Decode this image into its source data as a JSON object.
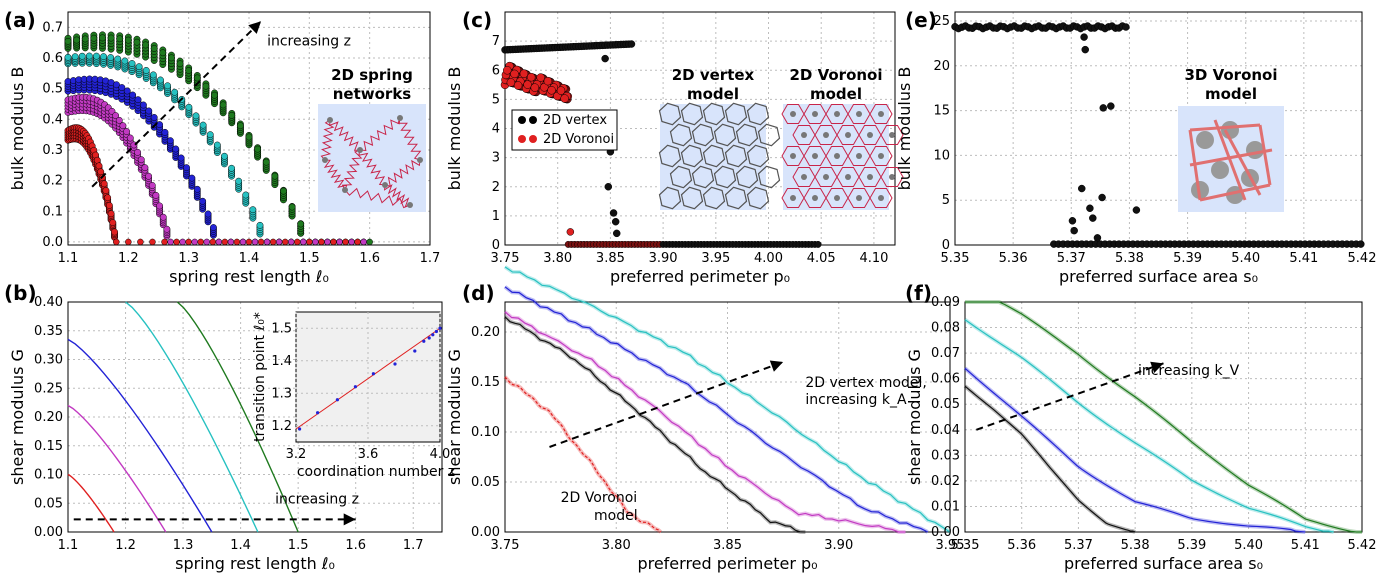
{
  "figure": {
    "panel_tags": [
      "(a)",
      "(b)",
      "(c)",
      "(d)",
      "(e)",
      "(f)"
    ]
  },
  "colors": {
    "green": "#1f7a1f",
    "cyan": "#27c1c1",
    "blue": "#2323d6",
    "magenta": "#c23ac2",
    "red": "#e02020",
    "black": "#111111",
    "gray": "#888888",
    "inset_bg": "#d8e4fb",
    "inset_line": "#c8254a"
  },
  "chart_data": [
    {
      "id": "a",
      "type": "scatter",
      "xlabel": "spring rest length ℓ₀",
      "ylabel": "bulk modulus B",
      "xlim": [
        1.1,
        1.7
      ],
      "ylim": [
        -0.01,
        0.75
      ],
      "xticks": [
        "1.1",
        "1.2",
        "1.3",
        "1.4",
        "1.5",
        "1.6",
        "1.7"
      ],
      "yticks": [
        "0.0",
        "0.1",
        "0.2",
        "0.3",
        "0.4",
        "0.5",
        "0.6",
        "0.7"
      ],
      "annotation": "increasing z",
      "inset_title": [
        "2D spring",
        "networks"
      ],
      "series": [
        {
          "color": "green",
          "zero_start": 1.5,
          "bands": [
            [
              1.1,
              1.5,
              0.64,
              0.66,
              0.7
            ],
            [
              1.1,
              1.5,
              0.63,
              0.65,
              0.69
            ]
          ]
        },
        {
          "color": "cyan",
          "zero_start": 1.43,
          "bands": [
            [
              1.1,
              1.43,
              0.58,
              0.6,
              0.62
            ]
          ]
        },
        {
          "color": "blue",
          "zero_start": 1.35,
          "bands": [
            [
              1.1,
              1.35,
              0.49,
              0.52,
              0.55
            ]
          ]
        },
        {
          "color": "magenta",
          "zero_start": 1.27,
          "bands": [
            [
              1.1,
              1.27,
              0.42,
              0.46,
              0.49
            ]
          ]
        },
        {
          "color": "red",
          "zero_start": 1.18,
          "bands": [
            [
              1.1,
              1.18,
              0.33,
              0.36,
              0.39
            ]
          ]
        }
      ]
    },
    {
      "id": "b",
      "type": "line",
      "xlabel": "spring rest length ℓ₀",
      "ylabel": "shear modulus G",
      "xlim": [
        1.1,
        1.75
      ],
      "ylim": [
        0,
        0.4
      ],
      "xticks": [
        "1.1",
        "1.2",
        "1.3",
        "1.4",
        "1.5",
        "1.6",
        "1.7"
      ],
      "yticks": [
        "0.00",
        "0.05",
        "0.10",
        "0.15",
        "0.20",
        "0.25",
        "0.30",
        "0.35",
        "0.40"
      ],
      "annotation": "increasing z",
      "series": [
        {
          "color": "red",
          "x": [
            1.1,
            1.18
          ],
          "y": [
            0.1,
            0.0
          ]
        },
        {
          "color": "magenta",
          "x": [
            1.1,
            1.27
          ],
          "y": [
            0.22,
            0.0
          ]
        },
        {
          "color": "blue",
          "x": [
            1.1,
            1.35
          ],
          "y": [
            0.335,
            0.0
          ]
        },
        {
          "color": "cyan",
          "x": [
            1.2,
            1.43
          ],
          "y": [
            0.4,
            0.0
          ]
        },
        {
          "color": "green",
          "x": [
            1.29,
            1.5
          ],
          "y": [
            0.4,
            0.0
          ]
        }
      ],
      "inset": {
        "xlabel": "coordination number z",
        "ylabel": "transition point ℓ₀*",
        "xlim": [
          3.2,
          4.0
        ],
        "ylim": [
          1.15,
          1.55
        ],
        "xticks": [
          "3.2",
          "3.6",
          "4.0"
        ],
        "yticks": [
          "1.2",
          "1.3",
          "1.4",
          "1.5"
        ],
        "points_x": [
          3.22,
          3.32,
          3.43,
          3.53,
          3.63,
          3.75,
          3.86,
          3.91,
          3.94,
          3.96,
          3.98,
          4.0
        ],
        "points_y": [
          1.19,
          1.24,
          1.28,
          1.32,
          1.36,
          1.39,
          1.43,
          1.46,
          1.47,
          1.48,
          1.49,
          1.5
        ]
      }
    },
    {
      "id": "c",
      "type": "scatter",
      "xlabel": "preferred perimeter p₀",
      "ylabel": "bulk modulus B",
      "xlim": [
        3.75,
        4.12
      ],
      "ylim": [
        0,
        8
      ],
      "xticks": [
        "3.75",
        "3.80",
        "3.85",
        "3.90",
        "3.95",
        "4.00",
        "4.05",
        "4.10"
      ],
      "yticks": [
        "0",
        "1",
        "2",
        "3",
        "4",
        "5",
        "6",
        "7"
      ],
      "legend": [
        "2D vertex",
        "2D Voronoi"
      ],
      "inset_titles": [
        [
          "2D vertex",
          "model"
        ],
        [
          "2D Voronoi",
          "model"
        ]
      ],
      "vertex_high": {
        "x": [
          3.75,
          3.87
        ],
        "y": [
          6.7,
          6.9
        ]
      },
      "vertex_outliers": {
        "x": [
          3.845,
          3.85,
          3.848,
          3.853,
          3.855,
          3.856
        ],
        "y": [
          6.4,
          3.2,
          2.0,
          1.1,
          0.8,
          0.4
        ]
      },
      "voronoi_cloud": {
        "x": [
          3.75,
          3.81
        ],
        "y_top": [
          6.2,
          5.4
        ],
        "y_bot": [
          5.5,
          5.0
        ]
      },
      "voronoi_outlier": {
        "x": 3.812,
        "y": 0.45
      },
      "zero_line": {
        "x": [
          3.81,
          4.05
        ]
      }
    },
    {
      "id": "d",
      "type": "line",
      "xlabel": "preferred perimeter p₀",
      "ylabel": "shear modulus G",
      "xlim": [
        3.75,
        3.95
      ],
      "ylim": [
        0,
        0.23
      ],
      "xticks": [
        "3.75",
        "3.80",
        "3.85",
        "3.90",
        "3.95"
      ],
      "yticks": [
        "0.00",
        "0.05",
        "0.10",
        "0.15",
        "0.20"
      ],
      "annotation": [
        "2D vertex model,",
        "increasing k_A"
      ],
      "annotation2": [
        "2D Voronoi",
        "model"
      ],
      "series": [
        {
          "color": "cyan",
          "x": [
            3.75,
            3.79,
            3.83,
            3.87,
            3.91,
            3.95
          ],
          "y": [
            0.265,
            0.225,
            0.18,
            0.12,
            0.055,
            0.0
          ]
        },
        {
          "color": "blue",
          "x": [
            3.75,
            3.79,
            3.83,
            3.87,
            3.91,
            3.94
          ],
          "y": [
            0.245,
            0.2,
            0.15,
            0.085,
            0.025,
            0.0
          ]
        },
        {
          "color": "magenta",
          "x": [
            3.75,
            3.79,
            3.82,
            3.85,
            3.88,
            3.93
          ],
          "y": [
            0.22,
            0.17,
            0.12,
            0.065,
            0.02,
            0.0
          ]
        },
        {
          "color": "black",
          "x": [
            3.75,
            3.78,
            3.81,
            3.84,
            3.87,
            3.885
          ],
          "y": [
            0.215,
            0.175,
            0.12,
            0.06,
            0.01,
            0.0
          ]
        },
        {
          "color": "red",
          "x": [
            3.75,
            3.77,
            3.79,
            3.805,
            3.82
          ],
          "y": [
            0.155,
            0.12,
            0.065,
            0.02,
            0.0
          ]
        }
      ]
    },
    {
      "id": "e",
      "type": "scatter",
      "xlabel": "preferred surface area s₀",
      "ylabel": "bulk modulus B",
      "xlim": [
        5.35,
        5.42
      ],
      "ylim": [
        0,
        26
      ],
      "xticks": [
        "5.35",
        "5.36",
        "5.37",
        "5.38",
        "5.39",
        "5.40",
        "5.41",
        "5.42"
      ],
      "yticks": [
        "0",
        "5",
        "10",
        "15",
        "20",
        "25"
      ],
      "inset_title": [
        "3D Voronoi",
        "model"
      ],
      "high_band": {
        "x": [
          5.35,
          5.38
        ],
        "y": 24.3
      },
      "outliers": {
        "x": [
          5.3722,
          5.3724,
          5.3755,
          5.3768,
          5.3753,
          5.3732,
          5.3702,
          5.3718,
          5.3737,
          5.3812,
          5.3745,
          5.3705
        ],
        "y": [
          23.2,
          21.8,
          15.3,
          15.5,
          5.3,
          4.1,
          2.7,
          6.3,
          3.0,
          3.9,
          0.8,
          1.6
        ]
      },
      "zero_line": {
        "x": [
          5.367,
          5.42
        ]
      }
    },
    {
      "id": "f",
      "type": "line",
      "xlabel": "preferred surface area s₀",
      "ylabel": "shear modulus G",
      "xlim": [
        5.35,
        5.42
      ],
      "ylim": [
        0,
        0.09
      ],
      "xticks": [
        "5.35",
        "5.36",
        "5.37",
        "5.38",
        "5.39",
        "5.40",
        "5.41",
        "5.42"
      ],
      "yticks": [
        "0.00",
        "0.01",
        "0.02",
        "0.03",
        "0.04",
        "0.05",
        "0.06",
        "0.07",
        "0.08",
        "0.09"
      ],
      "annotation": "increasing k_V",
      "series": [
        {
          "color": "green",
          "x": [
            5.35,
            5.36,
            5.37,
            5.38,
            5.39,
            5.4,
            5.41,
            5.42
          ],
          "y": [
            0.098,
            0.085,
            0.07,
            0.053,
            0.035,
            0.018,
            0.005,
            0.0
          ]
        },
        {
          "color": "cyan",
          "x": [
            5.35,
            5.36,
            5.37,
            5.38,
            5.39,
            5.4,
            5.41,
            5.415
          ],
          "y": [
            0.083,
            0.068,
            0.051,
            0.035,
            0.02,
            0.009,
            0.002,
            0.0
          ]
        },
        {
          "color": "blue",
          "x": [
            5.35,
            5.36,
            5.37,
            5.38,
            5.39,
            5.4,
            5.41
          ],
          "y": [
            0.064,
            0.045,
            0.026,
            0.012,
            0.005,
            0.002,
            0.0
          ]
        },
        {
          "color": "black",
          "x": [
            5.35,
            5.355,
            5.36,
            5.365,
            5.37,
            5.375,
            5.38
          ],
          "y": [
            0.057,
            0.048,
            0.038,
            0.025,
            0.013,
            0.004,
            0.0
          ]
        }
      ]
    }
  ]
}
